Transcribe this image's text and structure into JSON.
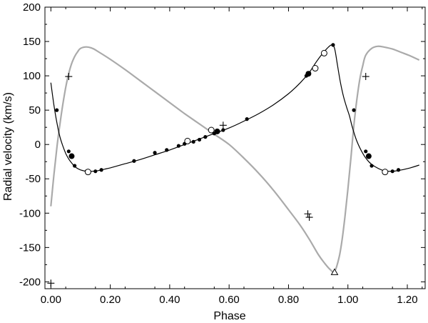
{
  "chart_data": {
    "type": "scatter",
    "title": "",
    "xlabel": "Phase",
    "ylabel": "Radial velocity (km/s)",
    "xlim": [
      -0.02,
      1.26
    ],
    "ylim": [
      -210,
      200
    ],
    "x_ticks": [
      0.0,
      0.2,
      0.4,
      0.6,
      0.8,
      1.0,
      1.2
    ],
    "x_tick_labels": [
      "0.00",
      "0.20",
      "0.40",
      "0.60",
      "0.80",
      "1.00",
      "1.20"
    ],
    "y_ticks": [
      -200,
      -150,
      -100,
      -50,
      0,
      50,
      100,
      150,
      200
    ],
    "y_tick_labels": [
      "-200",
      "-150",
      "-100",
      "-50",
      "0",
      "50",
      "100",
      "150",
      "200"
    ],
    "grid": false,
    "legend": "none",
    "colors": {
      "primary_curve": "#000000",
      "secondary_curve": "#aaaaaa",
      "markers": "#000000"
    },
    "series": [
      {
        "marker": "line",
        "x": [
          0.0,
          0.01,
          0.02,
          0.03,
          0.04,
          0.05,
          0.06,
          0.07,
          0.08,
          0.09,
          0.1,
          0.12,
          0.14,
          0.16,
          0.18,
          0.2,
          0.25,
          0.3,
          0.35,
          0.4,
          0.45,
          0.5,
          0.55,
          0.6,
          0.65,
          0.7,
          0.75,
          0.8,
          0.84,
          0.87,
          0.89,
          0.91,
          0.93,
          0.945,
          0.955,
          0.965,
          0.975,
          0.985,
          0.995,
          1.005,
          1.015,
          1.03,
          1.05,
          1.07,
          1.09,
          1.12,
          1.15,
          1.18,
          1.21,
          1.24
        ],
        "y": [
          90,
          58,
          32,
          12,
          -2,
          -13,
          -21,
          -27,
          -32,
          -35,
          -37,
          -39,
          -39,
          -38,
          -36,
          -34,
          -28,
          -22,
          -15,
          -8,
          0,
          8,
          16,
          24,
          34,
          45,
          58,
          74,
          90,
          105,
          118,
          130,
          140,
          145,
          140,
          115,
          90,
          70,
          55,
          42,
          25,
          5,
          -13,
          -25,
          -32,
          -38,
          -39,
          -37,
          -34,
          -30
        ]
      },
      {
        "marker": "line",
        "x": [
          0.0,
          0.01,
          0.02,
          0.03,
          0.04,
          0.05,
          0.06,
          0.07,
          0.08,
          0.09,
          0.1,
          0.12,
          0.14,
          0.16,
          0.2,
          0.25,
          0.3,
          0.35,
          0.4,
          0.45,
          0.5,
          0.55,
          0.6,
          0.65,
          0.7,
          0.75,
          0.8,
          0.84,
          0.87,
          0.9,
          0.92,
          0.94,
          0.955,
          0.97,
          0.98,
          0.99,
          1.0,
          1.01,
          1.02,
          1.03,
          1.04,
          1.05,
          1.06,
          1.08,
          1.1,
          1.12,
          1.15,
          1.18,
          1.21,
          1.24
        ],
        "y": [
          -90,
          -45,
          -5,
          28,
          58,
          83,
          103,
          118,
          128,
          135,
          140,
          142,
          140,
          135,
          124,
          109,
          93,
          77,
          61,
          45,
          30,
          15,
          0,
          -20,
          -42,
          -67,
          -95,
          -118,
          -138,
          -160,
          -172,
          -182,
          -185,
          -165,
          -140,
          -105,
          -65,
          -20,
          28,
          65,
          95,
          115,
          130,
          140,
          143,
          142,
          139,
          134,
          129,
          123
        ]
      },
      {
        "marker": "dot",
        "x": [
          0.02,
          0.06,
          0.08,
          0.12,
          0.15,
          0.17,
          0.28,
          0.35,
          0.39,
          0.43,
          0.45,
          0.48,
          0.5,
          0.52,
          0.55,
          0.58,
          0.66,
          0.86,
          0.87,
          0.95,
          1.02,
          1.06,
          1.08,
          1.15,
          1.17
        ],
        "y": [
          50,
          -10,
          -31,
          -39,
          -39,
          -37,
          -24,
          -12,
          -8,
          -2,
          1,
          4,
          7,
          11,
          16,
          21,
          37,
          100,
          104,
          145,
          50,
          -10,
          -31,
          -39,
          -37
        ]
      },
      {
        "marker": "big-dot",
        "x": [
          0.07,
          0.56,
          0.867,
          1.07
        ],
        "y": [
          -17,
          19,
          103,
          -17
        ]
      },
      {
        "marker": "open-circle",
        "x": [
          0.125,
          0.46,
          0.54,
          0.89,
          0.92,
          1.125
        ],
        "y": [
          -40,
          5,
          21,
          111,
          133,
          -40
        ]
      },
      {
        "marker": "plus",
        "x": [
          0.06,
          0.58,
          0.865,
          0.87,
          1.06,
          0.0
        ],
        "y": [
          99,
          28,
          -101,
          -106,
          99,
          -202
        ]
      },
      {
        "marker": "triangle",
        "x": [
          0.955
        ],
        "y": [
          -186
        ]
      }
    ]
  }
}
